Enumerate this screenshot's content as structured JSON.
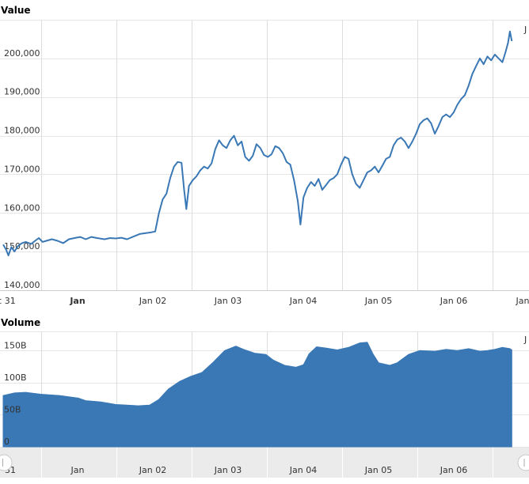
{
  "chart_data": [
    {
      "type": "line",
      "title": "Value",
      "ylim": [
        140000,
        210000
      ],
      "y_ticks": [
        {
          "value": 140000,
          "label": "140,000"
        },
        {
          "value": 150000,
          "label": "150,000"
        },
        {
          "value": 160000,
          "label": "160,000"
        },
        {
          "value": 170000,
          "label": "170,000"
        },
        {
          "value": 180000,
          "label": "180,000"
        },
        {
          "value": 190000,
          "label": "190,000"
        },
        {
          "value": 200000,
          "label": "200,000"
        }
      ],
      "x_ticks": [
        {
          "label": "c 31",
          "bold": false
        },
        {
          "label": "Jan",
          "bold": true
        },
        {
          "label": "Jan 02",
          "bold": false
        },
        {
          "label": "Jan 03",
          "bold": false
        },
        {
          "label": "Jan 04",
          "bold": false
        },
        {
          "label": "Jan 05",
          "bold": false
        },
        {
          "label": "Jan 06",
          "bold": false
        },
        {
          "label": "Jan",
          "bold": false
        }
      ],
      "grid": true,
      "color": "#3a78b5",
      "corner_label": "J",
      "series": [
        {
          "points": [
            [
              0.0,
              151800
            ],
            [
              0.08,
              150500
            ],
            [
              0.14,
              149000
            ],
            [
              0.22,
              151200
            ],
            [
              0.3,
              150000
            ],
            [
              0.4,
              151500
            ],
            [
              0.5,
              152200
            ],
            [
              0.6,
              152500
            ],
            [
              0.75,
              152000
            ],
            [
              0.85,
              152800
            ],
            [
              0.95,
              153500
            ],
            [
              1.05,
              152500
            ],
            [
              1.15,
              152800
            ],
            [
              1.3,
              153200
            ],
            [
              1.45,
              152800
            ],
            [
              1.6,
              152200
            ],
            [
              1.75,
              153200
            ],
            [
              1.9,
              153500
            ],
            [
              2.05,
              153800
            ],
            [
              2.2,
              153200
            ],
            [
              2.35,
              153800
            ],
            [
              2.5,
              153500
            ],
            [
              2.7,
              153200
            ],
            [
              2.85,
              153500
            ],
            [
              3.0,
              153400
            ],
            [
              3.15,
              153600
            ],
            [
              3.3,
              153200
            ],
            [
              3.5,
              154000
            ],
            [
              3.65,
              154600
            ],
            [
              3.8,
              154800
            ],
            [
              3.95,
              155000
            ],
            [
              4.05,
              155200
            ],
            [
              4.15,
              160000
            ],
            [
              4.25,
              163500
            ],
            [
              4.35,
              165000
            ],
            [
              4.45,
              169000
            ],
            [
              4.55,
              172000
            ],
            [
              4.65,
              173200
            ],
            [
              4.75,
              173000
            ],
            [
              4.82,
              166000
            ],
            [
              4.88,
              161000
            ],
            [
              4.95,
              167000
            ],
            [
              5.05,
              168500
            ],
            [
              5.15,
              169500
            ],
            [
              5.25,
              171000
            ],
            [
              5.35,
              172000
            ],
            [
              5.45,
              171500
            ],
            [
              5.55,
              172800
            ],
            [
              5.65,
              176500
            ],
            [
              5.75,
              178800
            ],
            [
              5.85,
              177500
            ],
            [
              5.95,
              176800
            ],
            [
              6.05,
              178800
            ],
            [
              6.15,
              180000
            ],
            [
              6.25,
              177500
            ],
            [
              6.35,
              178500
            ],
            [
              6.45,
              174500
            ],
            [
              6.55,
              173500
            ],
            [
              6.65,
              174800
            ],
            [
              6.75,
              177800
            ],
            [
              6.85,
              176800
            ],
            [
              6.95,
              175000
            ],
            [
              7.05,
              174500
            ],
            [
              7.15,
              175200
            ],
            [
              7.25,
              177300
            ],
            [
              7.35,
              176800
            ],
            [
              7.45,
              175500
            ],
            [
              7.55,
              173200
            ],
            [
              7.65,
              172500
            ],
            [
              7.75,
              168500
            ],
            [
              7.85,
              163000
            ],
            [
              7.92,
              157000
            ],
            [
              8.0,
              164000
            ],
            [
              8.1,
              166500
            ],
            [
              8.2,
              168000
            ],
            [
              8.3,
              167000
            ],
            [
              8.4,
              168800
            ],
            [
              8.5,
              166000
            ],
            [
              8.6,
              167200
            ],
            [
              8.7,
              168500
            ],
            [
              8.8,
              169000
            ],
            [
              8.9,
              170000
            ],
            [
              9.0,
              172500
            ],
            [
              9.1,
              174500
            ],
            [
              9.2,
              174000
            ],
            [
              9.3,
              170000
            ],
            [
              9.4,
              167500
            ],
            [
              9.5,
              166500
            ],
            [
              9.6,
              168500
            ],
            [
              9.7,
              170500
            ],
            [
              9.8,
              171000
            ],
            [
              9.9,
              172000
            ],
            [
              10.0,
              170500
            ],
            [
              10.1,
              172200
            ],
            [
              10.2,
              174000
            ],
            [
              10.3,
              174500
            ],
            [
              10.4,
              177500
            ],
            [
              10.5,
              179000
            ],
            [
              10.6,
              179500
            ],
            [
              10.7,
              178500
            ],
            [
              10.8,
              176800
            ],
            [
              10.9,
              178500
            ],
            [
              11.0,
              180500
            ],
            [
              11.1,
              183000
            ],
            [
              11.2,
              184000
            ],
            [
              11.3,
              184500
            ],
            [
              11.4,
              183200
            ],
            [
              11.5,
              180500
            ],
            [
              11.6,
              182500
            ],
            [
              11.7,
              184800
            ],
            [
              11.8,
              185500
            ],
            [
              11.9,
              184800
            ],
            [
              12.0,
              186000
            ],
            [
              12.1,
              188000
            ],
            [
              12.2,
              189500
            ],
            [
              12.3,
              190500
            ],
            [
              12.4,
              193000
            ],
            [
              12.5,
              196000
            ],
            [
              12.6,
              198000
            ],
            [
              12.7,
              200000
            ],
            [
              12.8,
              198500
            ],
            [
              12.9,
              200500
            ],
            [
              13.0,
              199500
            ],
            [
              13.1,
              201000
            ],
            [
              13.2,
              200000
            ],
            [
              13.3,
              199000
            ],
            [
              13.38,
              201500
            ],
            [
              13.45,
              204000
            ],
            [
              13.5,
              207000
            ],
            [
              13.55,
              204500
            ]
          ]
        }
      ]
    },
    {
      "type": "area",
      "title": "Volume",
      "ylim": [
        0,
        180
      ],
      "y_ticks": [
        {
          "value": 0,
          "label": "0"
        },
        {
          "value": 50,
          "label": "50B"
        },
        {
          "value": 100,
          "label": "100B"
        },
        {
          "value": 150,
          "label": "150B"
        }
      ],
      "grid": true,
      "color": "#3a78b5",
      "corner_label": "J",
      "series": [
        {
          "points": [
            [
              0.0,
              80
            ],
            [
              0.3,
              84
            ],
            [
              0.6,
              85
            ],
            [
              1.0,
              82
            ],
            [
              1.5,
              80
            ],
            [
              2.0,
              76
            ],
            [
              2.2,
              72
            ],
            [
              2.6,
              70
            ],
            [
              3.0,
              66
            ],
            [
              3.3,
              65
            ],
            [
              3.6,
              64
            ],
            [
              3.9,
              65
            ],
            [
              4.15,
              74
            ],
            [
              4.4,
              90
            ],
            [
              4.7,
              102
            ],
            [
              5.0,
              110
            ],
            [
              5.3,
              116
            ],
            [
              5.6,
              132
            ],
            [
              5.9,
              150
            ],
            [
              6.2,
              157
            ],
            [
              6.4,
              152
            ],
            [
              6.7,
              146
            ],
            [
              7.0,
              144
            ],
            [
              7.2,
              135
            ],
            [
              7.5,
              127
            ],
            [
              7.8,
              124
            ],
            [
              8.0,
              128
            ],
            [
              8.15,
              145
            ],
            [
              8.35,
              156
            ],
            [
              8.6,
              154
            ],
            [
              8.9,
              151
            ],
            [
              9.2,
              155
            ],
            [
              9.5,
              162
            ],
            [
              9.7,
              163
            ],
            [
              9.85,
              145
            ],
            [
              10.0,
              131
            ],
            [
              10.3,
              127
            ],
            [
              10.5,
              131
            ],
            [
              10.8,
              144
            ],
            [
              11.1,
              150
            ],
            [
              11.5,
              149
            ],
            [
              11.8,
              152
            ],
            [
              12.1,
              150
            ],
            [
              12.4,
              153
            ],
            [
              12.7,
              149
            ],
            [
              12.9,
              150
            ],
            [
              13.1,
              152
            ],
            [
              13.3,
              155
            ],
            [
              13.5,
              153
            ],
            [
              13.55,
              151
            ]
          ]
        }
      ]
    }
  ],
  "navigator": {
    "labels": [
      "31",
      "Jan",
      "Jan 02",
      "Jan 03",
      "Jan 04",
      "Jan 05",
      "Jan 06"
    ]
  }
}
